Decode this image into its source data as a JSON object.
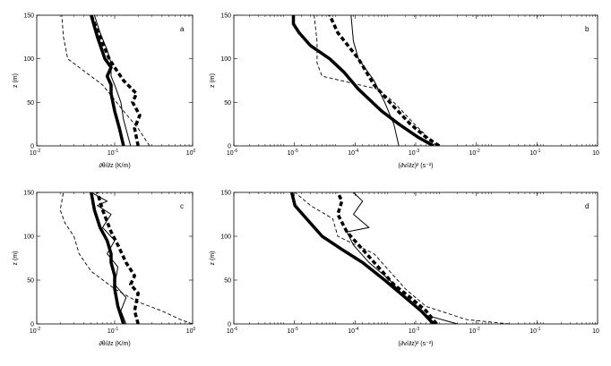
{
  "chart_data": [
    {
      "id": "a",
      "type": "line",
      "label": "a",
      "xscale": "log",
      "xlim": [
        0.01,
        1
      ],
      "ylim": [
        0,
        150
      ],
      "xticks": [
        {
          "base": "10",
          "exp": "-2"
        },
        {
          "base": "10",
          "exp": "-1"
        },
        {
          "base": "10",
          "exp": "0"
        }
      ],
      "yticks": [
        "0",
        "50",
        "100",
        "150"
      ],
      "xlabel": "∂θ/∂z (K/m)",
      "ylabel": "z (m)",
      "series": [
        {
          "name": "thick solid",
          "style": "thick-solid",
          "x": [
            0.13,
            0.115,
            0.1,
            0.09,
            0.09,
            0.08,
            0.09,
            0.075,
            0.06,
            0.05
          ],
          "y": [
            0,
            20,
            40,
            60,
            70,
            80,
            90,
            100,
            125,
            150
          ]
        },
        {
          "name": "thick dashed",
          "style": "thick-dashed",
          "x": [
            0.2,
            0.18,
            0.21,
            0.17,
            0.19,
            0.13,
            0.1,
            0.085,
            0.065,
            0.05
          ],
          "y": [
            0,
            20,
            35,
            50,
            60,
            75,
            90,
            100,
            125,
            150
          ]
        },
        {
          "name": "thin solid",
          "style": "thin-solid",
          "x": [
            0.16,
            0.13,
            0.12,
            0.1,
            0.09,
            0.09,
            0.08,
            0.065,
            0.055
          ],
          "y": [
            0,
            30,
            50,
            70,
            80,
            95,
            110,
            130,
            150
          ]
        },
        {
          "name": "thin dashed",
          "style": "thin-dashed",
          "x": [
            0.28,
            0.2,
            0.13,
            0.07,
            0.025,
            0.022,
            0.021
          ],
          "y": [
            0,
            20,
            40,
            70,
            100,
            125,
            150
          ]
        }
      ]
    },
    {
      "id": "b",
      "type": "line",
      "label": "b",
      "xscale": "log",
      "xlim": [
        1e-06,
        10
      ],
      "ylim": [
        0,
        150
      ],
      "xticks": [
        {
          "base": "10",
          "exp": "-6"
        },
        {
          "base": "10",
          "exp": "-5"
        },
        {
          "base": "10",
          "exp": "-4"
        },
        {
          "base": "10",
          "exp": "-3"
        },
        {
          "base": "10",
          "exp": "-2"
        },
        {
          "base": "10",
          "exp": "-1"
        },
        {
          "base": "10",
          "exp": ""
        }
      ],
      "yticks": [
        "0",
        "50",
        "100",
        "150"
      ],
      "xlabel": "(∂v/∂z)² (s⁻²)",
      "ylabel": "z (m)",
      "series": [
        {
          "name": "thick solid",
          "style": "thick-solid",
          "x": [
            0.007,
            0.0035,
            0.0015,
            0.0007,
            0.00025,
            0.00013,
            7e-05,
            3e-05,
            1.8e-05,
            1.4e-05,
            1.4e-05
          ],
          "y": [
            0,
            10,
            25,
            40,
            65,
            85,
            100,
            115,
            130,
            140,
            150
          ]
        },
        {
          "name": "thick dashed",
          "style": "thick-dashed",
          "x": [
            0.009,
            0.005,
            0.0025,
            0.0012,
            0.0005,
            0.00025,
            0.0001,
            7e-05
          ],
          "y": [
            0,
            10,
            25,
            45,
            70,
            100,
            130,
            150
          ]
        },
        {
          "name": "thin solid",
          "style": "thin-solid",
          "x": [
            0.0015,
            0.0012,
            0.0008,
            0.0005,
            0.00025,
            0.0002,
            0.00018
          ],
          "y": [
            0,
            25,
            50,
            75,
            100,
            120,
            150
          ]
        },
        {
          "name": "thin dashed",
          "style": "thin-dashed",
          "x": [
            0.008,
            0.003,
            0.0012,
            0.0006,
            5e-05,
            4e-05,
            4e-05,
            3.5e-05
          ],
          "y": [
            0,
            25,
            50,
            65,
            80,
            95,
            120,
            150
          ]
        }
      ]
    },
    {
      "id": "c",
      "type": "line",
      "label": "c",
      "xscale": "log",
      "xlim": [
        0.01,
        1
      ],
      "ylim": [
        0,
        150
      ],
      "xticks": [
        {
          "base": "10",
          "exp": "-2"
        },
        {
          "base": "10",
          "exp": "-1"
        },
        {
          "base": "10",
          "exp": "0"
        }
      ],
      "yticks": [
        "0",
        "50",
        "100",
        "150"
      ],
      "xlabel": "∂θ/∂z (K/m)",
      "ylabel": "z (m)",
      "series": [
        {
          "name": "thick solid",
          "style": "thick-solid",
          "x": [
            0.13,
            0.11,
            0.1,
            0.1,
            0.09,
            0.09,
            0.08,
            0.065,
            0.055,
            0.05
          ],
          "y": [
            0,
            20,
            40,
            55,
            70,
            80,
            95,
            110,
            130,
            150
          ]
        },
        {
          "name": "thick dashed",
          "style": "thick-dashed",
          "x": [
            0.2,
            0.18,
            0.2,
            0.16,
            0.18,
            0.14,
            0.11,
            0.09,
            0.07,
            0.06
          ],
          "y": [
            0,
            15,
            35,
            45,
            55,
            70,
            90,
            105,
            130,
            150
          ]
        },
        {
          "name": "thin solid",
          "style": "thin-solid",
          "x": [
            0.14,
            0.12,
            0.14,
            0.1,
            0.11,
            0.08,
            0.1,
            0.07,
            0.09,
            0.06,
            0.08,
            0.05
          ],
          "y": [
            0,
            15,
            30,
            45,
            65,
            80,
            95,
            110,
            125,
            135,
            140,
            150
          ]
        },
        {
          "name": "thin dashed",
          "style": "thin-dashed",
          "x": [
            1,
            0.7,
            0.4,
            0.2,
            0.1,
            0.05,
            0.035,
            0.03,
            0.023,
            0.02,
            0.022
          ],
          "y": [
            0,
            5,
            15,
            25,
            40,
            60,
            80,
            100,
            115,
            130,
            150
          ]
        }
      ]
    },
    {
      "id": "d",
      "type": "line",
      "label": "d",
      "xscale": "log",
      "xlim": [
        1e-06,
        10
      ],
      "ylim": [
        0,
        150
      ],
      "xticks": [
        {
          "base": "10",
          "exp": "-6"
        },
        {
          "base": "10",
          "exp": "-5"
        },
        {
          "base": "10",
          "exp": "-4"
        },
        {
          "base": "10",
          "exp": "-3"
        },
        {
          "base": "10",
          "exp": "-2"
        },
        {
          "base": "10",
          "exp": "-1"
        },
        {
          "base": "10",
          "exp": ""
        }
      ],
      "yticks": [
        "0",
        "50",
        "100",
        "150"
      ],
      "xlabel": "(∂v/∂z)² (s⁻²)",
      "ylabel": "z (m)",
      "series": [
        {
          "name": "thick solid",
          "style": "thick-solid",
          "x": [
            0.007,
            0.004,
            0.002,
            0.0008,
            0.0003,
            0.00012,
            5e-05,
            2.5e-05,
            1.5e-05,
            1.3e-05
          ],
          "y": [
            0,
            15,
            30,
            50,
            70,
            85,
            100,
            120,
            135,
            150
          ]
        },
        {
          "name": "thick dashed",
          "style": "thick-dashed",
          "x": [
            0.008,
            0.005,
            0.0025,
            0.0012,
            0.0006,
            0.0003,
            0.00015,
            0.0001,
            0.00012,
            0.0001
          ],
          "y": [
            0,
            15,
            30,
            45,
            65,
            85,
            105,
            125,
            140,
            150
          ]
        },
        {
          "name": "thin solid",
          "style": "thin-solid",
          "x": [
            0.02,
            0.005,
            0.002,
            0.001,
            0.0004,
            0.0002,
            0.00015,
            0.0004,
            0.0002,
            0.0003,
            0.0002
          ],
          "y": [
            0,
            10,
            30,
            50,
            70,
            90,
            105,
            110,
            125,
            140,
            150
          ]
        },
        {
          "name": "thin dashed",
          "style": "thin-dashed",
          "x": [
            0.2,
            0.03,
            0.005,
            0.002,
            0.0005,
            0.0001,
            8e-05,
            3e-05,
            1.5e-05
          ],
          "y": [
            0,
            5,
            20,
            40,
            80,
            100,
            120,
            135,
            150
          ]
        }
      ]
    }
  ]
}
